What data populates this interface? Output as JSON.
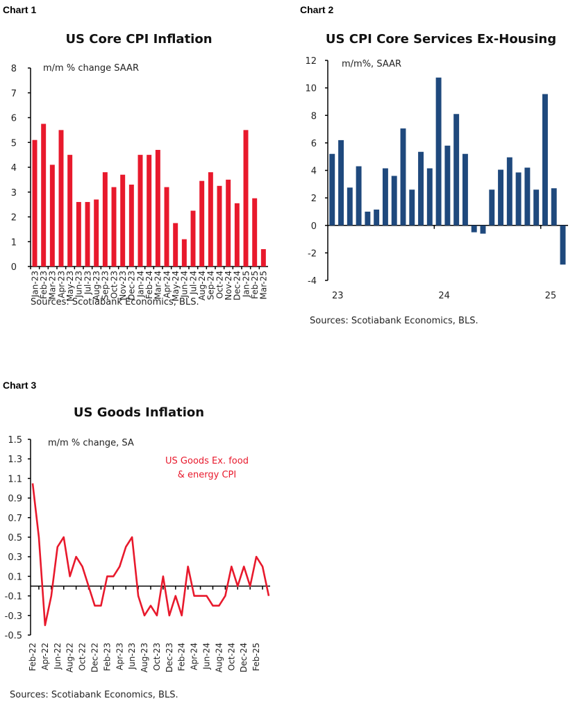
{
  "chart_data": [
    {
      "label": "Chart 1",
      "type": "bar",
      "title": "US Core CPI Inflation",
      "unit_note": "m/m % change SAAR",
      "categories": [
        "Jan-23",
        "Feb-23",
        "Mar-23",
        "Apr-23",
        "May-23",
        "Jun-23",
        "Jul-23",
        "Aug-23",
        "Sep-23",
        "Oct-23",
        "Nov-23",
        "Dec-23",
        "Jan-24",
        "Feb-24",
        "Mar-24",
        "Apr-24",
        "May-24",
        "Jun-24",
        "Jul-24",
        "Aug-24",
        "Sep-24",
        "Oct-24",
        "Nov-24",
        "Dec-24",
        "Jan-25",
        "Feb-25",
        "Mar-25"
      ],
      "values": [
        5.1,
        5.75,
        4.1,
        5.5,
        4.5,
        2.6,
        2.6,
        2.7,
        3.8,
        3.2,
        3.7,
        3.3,
        4.5,
        4.5,
        4.7,
        3.2,
        1.75,
        1.1,
        2.25,
        3.45,
        3.8,
        3.25,
        3.5,
        2.55,
        5.5,
        2.75,
        0.7
      ],
      "ylim": [
        0,
        8
      ],
      "yticks": [
        "0",
        "1",
        "2",
        "3",
        "4",
        "5",
        "6",
        "7",
        "8"
      ],
      "color": "#e8192c",
      "source": "Sources: Scotiabank Economics, BLS."
    },
    {
      "label": "Chart 2",
      "type": "bar",
      "title": "US CPI Core Services Ex-Housing",
      "unit_note": "m/m%, SAAR",
      "values": [
        5.2,
        6.2,
        2.75,
        4.3,
        1.0,
        1.15,
        4.15,
        3.6,
        7.05,
        2.6,
        5.35,
        4.15,
        10.75,
        5.8,
        8.1,
        5.2,
        -0.5,
        -0.6,
        2.6,
        4.05,
        4.95,
        3.85,
        4.2,
        2.6,
        9.55,
        2.7,
        -2.85
      ],
      "xticks": [
        "23",
        "24",
        "25"
      ],
      "ylim": [
        -4,
        12
      ],
      "yticks": [
        "-4",
        "-2",
        "0",
        "2",
        "4",
        "6",
        "8",
        "10",
        "12"
      ],
      "color": "#1f497d",
      "source": "Sources: Scotiabank Economics, BLS."
    },
    {
      "label": "Chart 3",
      "type": "line",
      "title": "US Goods Inflation",
      "unit_note": "m/m % change, SA",
      "series_name": "US Goods Ex. food & energy CPI",
      "values": [
        1.05,
        0.5,
        -0.4,
        -0.1,
        0.4,
        0.5,
        0.1,
        0.3,
        0.2,
        0.0,
        -0.2,
        -0.2,
        0.1,
        0.1,
        0.2,
        0.4,
        0.5,
        -0.1,
        -0.3,
        -0.2,
        -0.3,
        0.1,
        -0.3,
        -0.1,
        -0.3,
        0.2,
        -0.1,
        -0.1,
        -0.1,
        -0.2,
        -0.2,
        -0.1,
        0.2,
        0.0,
        0.2,
        0.0,
        0.3,
        0.2,
        -0.1
      ],
      "xticks": [
        "Feb-22",
        "Apr-22",
        "Jun-22",
        "Aug-22",
        "Oct-22",
        "Dec-22",
        "Feb-23",
        "Apr-23",
        "Jun-23",
        "Aug-23",
        "Oct-23",
        "Dec-23",
        "Feb-24",
        "Apr-24",
        "Jun-24",
        "Aug-24",
        "Oct-24",
        "Dec-24",
        "Feb-25"
      ],
      "ylim": [
        -0.5,
        1.5
      ],
      "yticks": [
        "-0.5",
        "-0.3",
        "-0.1",
        "0.1",
        "0.3",
        "0.5",
        "0.7",
        "0.9",
        "1.1",
        "1.3",
        "1.5"
      ],
      "color": "#e8192c",
      "source": "Sources: Scotiabank Economics, BLS."
    }
  ]
}
